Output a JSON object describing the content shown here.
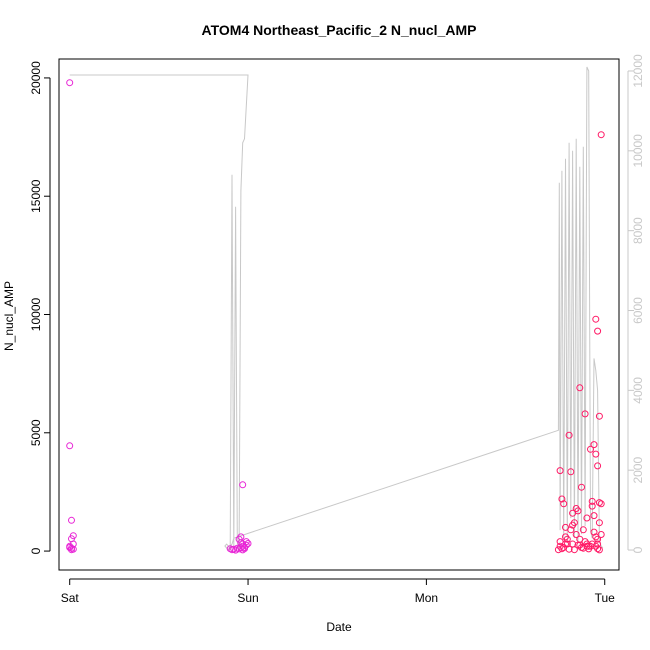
{
  "chart_data": {
    "type": "scatter",
    "title": "ATOM4 Northeast_Pacific_2 N_nucl_AMP",
    "xlabel": "Date",
    "ylabel": "N_nucl_AMP",
    "x_ticks": [
      "Sat",
      "Sun",
      "Mon",
      "Tue"
    ],
    "xlim_days": [
      -0.06,
      3.08
    ],
    "ylim": [
      -800,
      20800
    ],
    "y_ticks": [
      0,
      5000,
      10000,
      15000,
      20000
    ],
    "y2_ticks": [
      0,
      2000,
      4000,
      6000,
      8000,
      10000,
      12000
    ],
    "y2lim": [
      -500,
      12300
    ],
    "grid": false,
    "colors": {
      "points_early": "#e826d6",
      "points_late": "#ff1a66",
      "line": "#c8c8c8",
      "axis": "#000000",
      "axis2": "#c8c8c8"
    },
    "series": [
      {
        "style": "points",
        "x": [
          0.0,
          0.0,
          0.01,
          0.02,
          0.01,
          0.02,
          0.0,
          0.01,
          0.02,
          0.01,
          0.0,
          0.9,
          0.91,
          0.92,
          0.93,
          0.94,
          0.95,
          0.96,
          0.97,
          0.95,
          0.96,
          0.96,
          0.97,
          0.97,
          0.98,
          0.99,
          0.99,
          1.0,
          0.98,
          0.97,
          2.74,
          2.75,
          2.75,
          2.76,
          2.77,
          2.78,
          2.79,
          2.8,
          2.81,
          2.82,
          2.83,
          2.84,
          2.85,
          2.86,
          2.87,
          2.88,
          2.89,
          2.9,
          2.91,
          2.92,
          2.93,
          2.94,
          2.95,
          2.96,
          2.97,
          2.98,
          2.76,
          2.78,
          2.79,
          2.81,
          2.82,
          2.84,
          2.86,
          2.87,
          2.89,
          2.9,
          2.92,
          2.93,
          2.95,
          2.96,
          2.97,
          2.94,
          2.95,
          2.96,
          2.97,
          2.98,
          2.95,
          2.96,
          2.97,
          2.75,
          2.77,
          2.8,
          2.83,
          2.85,
          2.88,
          2.91,
          2.93,
          2.96,
          2.98,
          2.78,
          2.82,
          2.86,
          2.9,
          2.94
        ],
        "y": [
          19800,
          4450,
          1300,
          650,
          520,
          300,
          200,
          120,
          80,
          60,
          150,
          100,
          60,
          80,
          40,
          120,
          90,
          150,
          300,
          500,
          350,
          600,
          200,
          2800,
          150,
          250,
          400,
          320,
          100,
          50,
          60,
          200,
          3400,
          2200,
          2000,
          600,
          300,
          4900,
          3350,
          1600,
          1200,
          1800,
          1700,
          6900,
          2700,
          900,
          5800,
          300,
          200,
          4300,
          2100,
          4500,
          9800,
          9300,
          5700,
          17600,
          100,
          300,
          500,
          900,
          1100,
          700,
          250,
          150,
          400,
          1400,
          200,
          1900,
          4100,
          3600,
          2050,
          800,
          600,
          300,
          1200,
          2000,
          200,
          100,
          50,
          400,
          150,
          80,
          60,
          250,
          120,
          90,
          300,
          500,
          700,
          1000,
          300,
          500,
          200,
          1500
        ]
      },
      {
        "style": "line",
        "x": [
          0.0,
          0.005,
          0.02,
          0.04,
          0.99,
          1.0,
          0.98,
          0.97,
          0.96,
          0.95,
          0.94,
          0.93,
          0.92,
          0.91,
          0.9,
          0.89,
          0.88,
          0.87,
          0.88,
          0.89,
          0.9,
          0.91,
          0.92,
          2.74,
          2.745,
          2.75,
          2.76,
          2.77,
          2.78,
          2.79,
          2.8,
          2.81,
          2.82,
          2.83,
          2.84,
          2.85,
          2.86,
          2.87,
          2.88,
          2.89,
          2.9,
          2.91,
          2.92,
          2.93,
          2.94,
          2.95,
          2.96,
          2.97,
          2.98,
          2.99
        ],
        "y": [
          11900,
          11900,
          11900,
          11900,
          11900,
          11900,
          10300,
          10200,
          9000,
          0,
          200,
          8600,
          100,
          9400,
          0,
          100,
          150,
          100,
          50,
          0,
          100,
          150,
          300,
          3000,
          9200,
          500,
          9500,
          300,
          9800,
          200,
          10200,
          800,
          10000,
          300,
          10300,
          200,
          9600,
          400,
          10100,
          600,
          12100,
          12000,
          500,
          300,
          4800,
          4500,
          4000,
          200,
          100,
          50
        ]
      }
    ]
  }
}
